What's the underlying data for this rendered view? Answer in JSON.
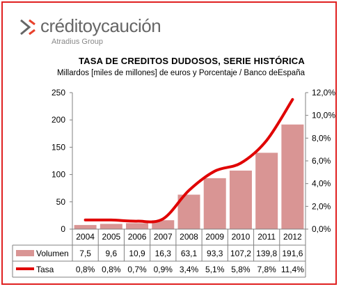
{
  "brand": {
    "name": "créditoycaución",
    "subtitle": "Atradius Group",
    "accent": "#e02020",
    "mark_color": "#e8412c"
  },
  "chart_data": {
    "type": "bar",
    "title": "TASA DE CREDITOS DUDOSOS, SERIE HISTÓRICA",
    "subtitle": "Millardos [miles de millones] de euros y Porcentaje / Banco deEspaña",
    "categories": [
      "2004",
      "2005",
      "2006",
      "2007",
      "2008",
      "2009",
      "2010",
      "2011",
      "2012"
    ],
    "series": [
      {
        "name": "Volumen",
        "type": "bar",
        "axis": "left",
        "color": "#d99594",
        "values": [
          7.5,
          9.6,
          10.9,
          16.3,
          63.1,
          93.3,
          107.2,
          139.8,
          191.6
        ],
        "labels": [
          "7,5",
          "9,6",
          "10,9",
          "16,3",
          "63,1",
          "93,3",
          "107,2",
          "139,8",
          "191,6"
        ]
      },
      {
        "name": "Tasa",
        "type": "line",
        "axis": "right",
        "color": "#e00000",
        "values": [
          0.8,
          0.8,
          0.7,
          0.9,
          3.4,
          5.1,
          5.8,
          7.8,
          11.4
        ],
        "labels": [
          "0,8%",
          "0,8%",
          "0,7%",
          "0,9%",
          "3,4%",
          "5,1%",
          "5,8%",
          "7,8%",
          "11,4%"
        ]
      }
    ],
    "ylim": [
      0,
      250
    ],
    "yticks": [
      "0",
      "50",
      "100",
      "150",
      "200",
      "250"
    ],
    "y2lim": [
      0,
      12
    ],
    "y2ticks": [
      "0,0%",
      "2,0%",
      "4,0%",
      "6,0%",
      "8,0%",
      "10,0%",
      "12,0%"
    ],
    "grid": false,
    "legend": "data-table"
  }
}
